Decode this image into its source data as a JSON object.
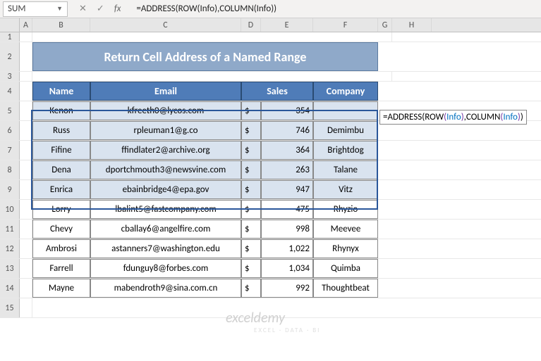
{
  "namebox": "SUM",
  "formula_bar": "=ADDRESS(ROW(Info),COLUMN(Info))",
  "formula_parts": {
    "eq": "=",
    "addr": "ADDRESS",
    "op1": "(",
    "row": "ROW",
    "op2": "(",
    "info1": "Info",
    "cp1": ")",
    "comma": ",",
    "col": "COLUMN",
    "op3": "(",
    "info2": "Info",
    "cp2": ")",
    "cp3": ")"
  },
  "columns": [
    "A",
    "B",
    "C",
    "D",
    "E",
    "F",
    "G",
    "H"
  ],
  "title": "Return Cell Address of a Named Range",
  "headers": {
    "name": "Name",
    "email": "Email",
    "sales": "Sales",
    "company": "Company"
  },
  "rows": [
    {
      "r": 5,
      "name": "Kenon",
      "email": "kfreeth0@lycos.com",
      "cur": "$",
      "sales": "354",
      "company": "",
      "sel": true
    },
    {
      "r": 6,
      "name": "Russ",
      "email": "rpleuman1@g.co",
      "cur": "$",
      "sales": "746",
      "company": "Demimbu",
      "sel": true
    },
    {
      "r": 7,
      "name": "Fifine",
      "email": "ffindlater2@archive.org",
      "cur": "$",
      "sales": "364",
      "company": "Brightdog",
      "sel": true
    },
    {
      "r": 8,
      "name": "Dena",
      "email": "dportchmouth3@newsvine.com",
      "cur": "$",
      "sales": "263",
      "company": "Talane",
      "sel": true
    },
    {
      "r": 9,
      "name": "Enrica",
      "email": "ebainbridge4@epa.gov",
      "cur": "$",
      "sales": "947",
      "company": "Vitz",
      "sel": true
    },
    {
      "r": 10,
      "name": "Lorry",
      "email": "lbalint5@fastcompany.com",
      "cur": "$",
      "sales": "475",
      "company": "Rhyzio",
      "sel": false
    },
    {
      "r": 11,
      "name": "Chevy",
      "email": "cballay6@angelfire.com",
      "cur": "$",
      "sales": "998",
      "company": "Meevee",
      "sel": false
    },
    {
      "r": 12,
      "name": "Ambrosi",
      "email": "astanners7@washington.edu",
      "cur": "$",
      "sales": "1,022",
      "company": "Rhynyx",
      "sel": false
    },
    {
      "r": 13,
      "name": "Farrell",
      "email": "fdunguy8@forbes.com",
      "cur": "$",
      "sales": "1,034",
      "company": "Quimba",
      "sel": false
    },
    {
      "r": 14,
      "name": "Mayne",
      "email": "mabendroth9@sina.com.cn",
      "cur": "$",
      "sales": "992",
      "company": "Thoughtbeat",
      "sel": false
    }
  ],
  "watermark": "exceldemy",
  "watermark_sub": "EXCEL · DATA · BI",
  "colors": {
    "header_bg": "#4f7cb8",
    "banner_bg": "#8fa9c9",
    "sel_bg": "#d9e3ef",
    "active_border": "#217346"
  }
}
